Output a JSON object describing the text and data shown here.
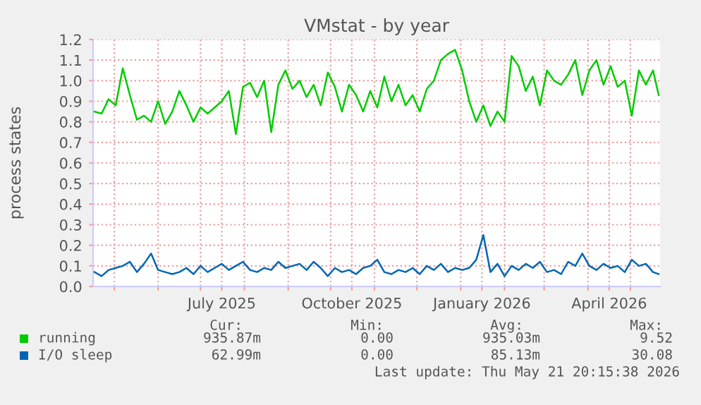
{
  "chart_data": {
    "type": "line",
    "title": "VMstat - by year",
    "ylabel": "process states",
    "x": [
      "2025-04-17",
      "2025-04-22",
      "2025-04-27",
      "2025-05-02",
      "2025-05-07",
      "2025-05-12",
      "2025-05-17",
      "2025-05-22",
      "2025-05-27",
      "2025-06-01",
      "2025-06-06",
      "2025-06-11",
      "2025-06-16",
      "2025-06-21",
      "2025-06-26",
      "2025-07-01",
      "2025-07-06",
      "2025-07-11",
      "2025-07-16",
      "2025-07-21",
      "2025-07-26",
      "2025-07-31",
      "2025-08-05",
      "2025-08-10",
      "2025-08-15",
      "2025-08-20",
      "2025-08-25",
      "2025-08-30",
      "2025-09-04",
      "2025-09-09",
      "2025-09-14",
      "2025-09-19",
      "2025-09-24",
      "2025-09-29",
      "2025-10-04",
      "2025-10-09",
      "2025-10-14",
      "2025-10-19",
      "2025-10-24",
      "2025-10-29",
      "2025-11-03",
      "2025-11-08",
      "2025-11-13",
      "2025-11-18",
      "2025-11-23",
      "2025-11-28",
      "2025-12-03",
      "2025-12-08",
      "2025-12-13",
      "2025-12-18",
      "2025-12-23",
      "2025-12-28",
      "2026-01-02",
      "2026-01-07",
      "2026-01-12",
      "2026-01-17",
      "2026-01-22",
      "2026-01-27",
      "2026-02-01",
      "2026-02-06",
      "2026-02-11",
      "2026-02-16",
      "2026-02-21",
      "2026-02-26",
      "2026-03-03",
      "2026-03-08",
      "2026-03-13",
      "2026-03-18",
      "2026-03-23",
      "2026-03-28",
      "2026-04-02",
      "2026-04-07",
      "2026-04-12",
      "2026-04-17",
      "2026-04-22",
      "2026-04-27",
      "2026-05-02",
      "2026-05-07",
      "2026-05-12",
      "2026-05-17",
      "2026-05-21"
    ],
    "series": [
      {
        "name": "running",
        "color": "#00cc00",
        "values": [
          0.85,
          0.84,
          0.91,
          0.88,
          1.06,
          0.93,
          0.81,
          0.83,
          0.8,
          0.9,
          0.79,
          0.85,
          0.95,
          0.88,
          0.8,
          0.87,
          0.84,
          0.87,
          0.9,
          0.95,
          0.74,
          0.97,
          0.99,
          0.92,
          1.0,
          0.75,
          0.98,
          1.05,
          0.96,
          1.0,
          0.92,
          0.98,
          0.88,
          1.04,
          0.97,
          0.85,
          0.98,
          0.93,
          0.85,
          0.95,
          0.87,
          1.02,
          0.9,
          0.98,
          0.88,
          0.93,
          0.85,
          0.96,
          1.0,
          1.1,
          1.13,
          1.15,
          1.05,
          0.9,
          0.8,
          0.88,
          0.78,
          0.85,
          0.8,
          1.12,
          1.07,
          0.95,
          1.02,
          0.88,
          1.05,
          1.0,
          0.98,
          1.03,
          1.1,
          0.93,
          1.05,
          1.1,
          0.98,
          1.07,
          0.97,
          1.0,
          0.83,
          1.05,
          0.98,
          1.05,
          0.93
        ]
      },
      {
        "name": "I/O sleep",
        "color": "#0066b3",
        "values": [
          0.07,
          0.05,
          0.08,
          0.09,
          0.1,
          0.12,
          0.07,
          0.11,
          0.16,
          0.08,
          0.07,
          0.06,
          0.07,
          0.09,
          0.06,
          0.1,
          0.07,
          0.09,
          0.11,
          0.08,
          0.1,
          0.12,
          0.08,
          0.07,
          0.09,
          0.08,
          0.12,
          0.09,
          0.1,
          0.11,
          0.08,
          0.12,
          0.09,
          0.05,
          0.09,
          0.07,
          0.08,
          0.06,
          0.09,
          0.1,
          0.13,
          0.07,
          0.06,
          0.08,
          0.07,
          0.09,
          0.06,
          0.1,
          0.08,
          0.11,
          0.07,
          0.09,
          0.08,
          0.09,
          0.13,
          0.25,
          0.07,
          0.11,
          0.05,
          0.1,
          0.08,
          0.11,
          0.09,
          0.12,
          0.07,
          0.08,
          0.06,
          0.12,
          0.1,
          0.16,
          0.1,
          0.08,
          0.11,
          0.09,
          0.1,
          0.07,
          0.13,
          0.1,
          0.11,
          0.07,
          0.06
        ]
      }
    ],
    "xlim": [
      "2025-04-16",
      "2026-05-22"
    ],
    "xticks": [
      {
        "value": "2025-05-01",
        "label": null
      },
      {
        "value": "2025-06-01",
        "label": null
      },
      {
        "value": "2025-07-01",
        "label": null
      },
      {
        "value": "2025-07-16",
        "label": "July 2025"
      },
      {
        "value": "2025-08-01",
        "label": null
      },
      {
        "value": "2025-09-01",
        "label": null
      },
      {
        "value": "2025-10-01",
        "label": null
      },
      {
        "value": "2025-10-16",
        "label": "October 2025"
      },
      {
        "value": "2025-11-01",
        "label": null
      },
      {
        "value": "2025-12-01",
        "label": null
      },
      {
        "value": "2026-01-01",
        "label": null
      },
      {
        "value": "2026-01-16",
        "label": "January 2026"
      },
      {
        "value": "2026-02-01",
        "label": null
      },
      {
        "value": "2026-03-01",
        "label": null
      },
      {
        "value": "2026-04-01",
        "label": null
      },
      {
        "value": "2026-04-16",
        "label": "April 2026"
      },
      {
        "value": "2026-05-01",
        "label": null
      }
    ],
    "ylim": [
      0,
      1.2
    ],
    "yticks": [
      {
        "value": 0,
        "label": "0.0"
      },
      {
        "value": 0.1,
        "label": "0.1"
      },
      {
        "value": 0.2,
        "label": "0.2"
      },
      {
        "value": 0.3,
        "label": "0.3"
      },
      {
        "value": 0.4,
        "label": "0.4"
      },
      {
        "value": 0.5,
        "label": "0.5"
      },
      {
        "value": 0.6,
        "label": "0.6"
      },
      {
        "value": 0.7,
        "label": "0.7"
      },
      {
        "value": 0.8,
        "label": "0.8"
      },
      {
        "value": 0.9,
        "label": "0.9"
      },
      {
        "value": 1.0,
        "label": "1.0"
      },
      {
        "value": 1.1,
        "label": "1.1"
      },
      {
        "value": 1.2,
        "label": "1.2"
      }
    ],
    "grid": true,
    "legend": "bottom left",
    "marker": "none",
    "line_style": "solid",
    "annotations": [
      "Cur:",
      "Min:",
      "Avg:",
      "Max:",
      "935.87m",
      "0.00",
      "935.03m",
      "9.52",
      "62.99m",
      "0.00",
      "85.13m",
      "30.08",
      "Last update: Thu May 21 20:15:38 2026"
    ]
  }
}
